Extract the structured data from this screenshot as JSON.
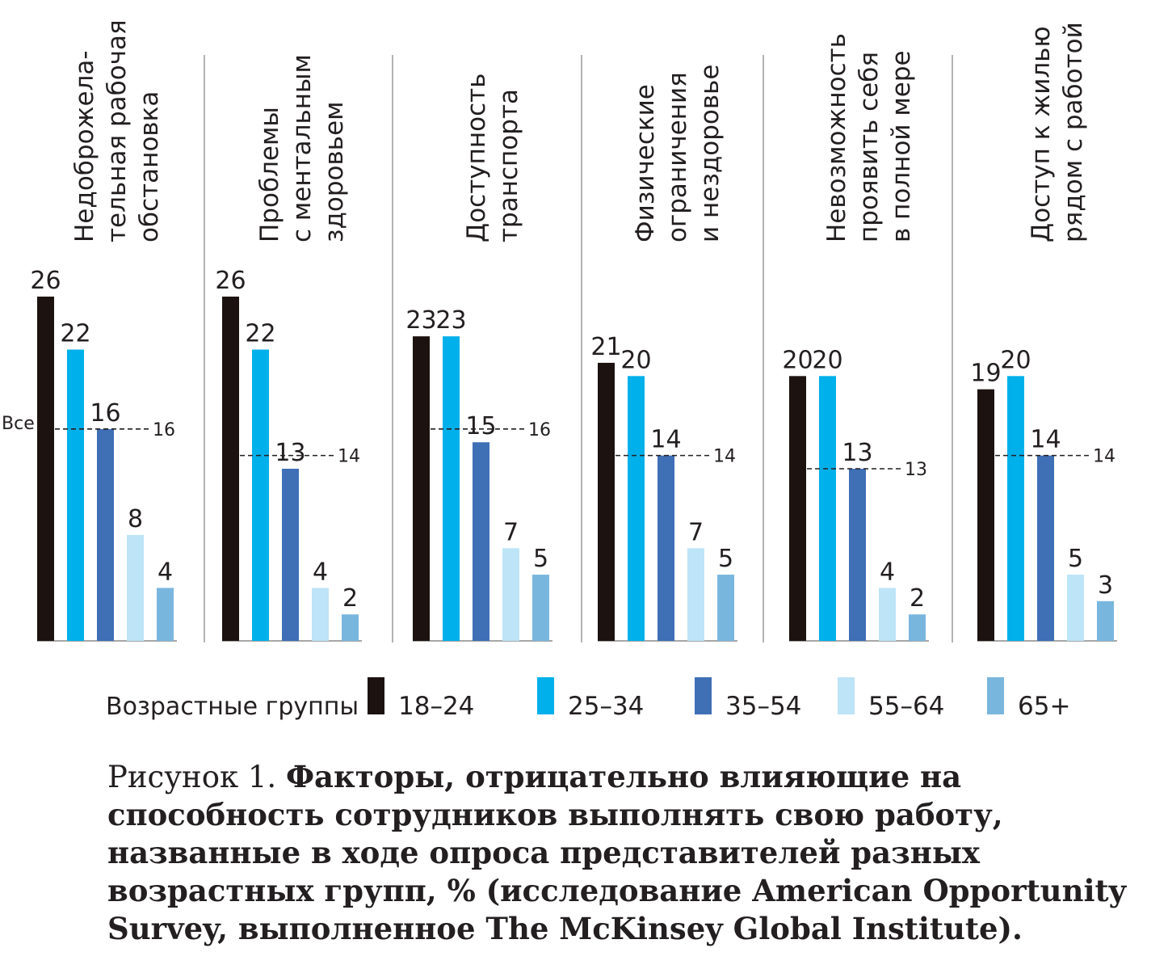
{
  "chart_data": {
    "type": "bar",
    "categories": [
      "Недоброжела-\nтельная рабочая\nобстановка",
      "Проблемы\nс ментальным\nздоровьем",
      "Доступность\nтранспорта",
      "Физические\nограничения\nи нездоровье",
      "Невозможность\nпроявить себя\nв полной мере",
      "Доступ к жилью\nрядом с работой"
    ],
    "series": [
      {
        "name": "18–24",
        "color": "#1c1310",
        "values": [
          26,
          26,
          23,
          21,
          20,
          19
        ]
      },
      {
        "name": "25–34",
        "color": "#00b0ea",
        "values": [
          22,
          22,
          23,
          20,
          20,
          20
        ]
      },
      {
        "name": "35–54",
        "color": "#3f6fb5",
        "values": [
          16,
          13,
          15,
          14,
          13,
          14
        ]
      },
      {
        "name": "55–64",
        "color": "#bde4f7",
        "values": [
          8,
          4,
          7,
          7,
          4,
          5
        ]
      },
      {
        "name": "65+",
        "color": "#79b6de",
        "values": [
          4,
          2,
          5,
          5,
          2,
          3
        ]
      }
    ],
    "reference": {
      "label": "Все",
      "values": [
        16,
        14,
        16,
        14,
        13,
        14
      ]
    },
    "legend_title": "Возрастные группы",
    "legend_position": "bottom",
    "ylim": [
      0,
      26
    ]
  },
  "caption": {
    "figure_label": "Рисунок 1. ",
    "title": "Факторы, отрицательно влияющие на способность сотрудников выполнять свою работу, названные в ходе опроса представителей разных возрастных групп, % (исследование American Opportunity Survey, выполненное The McKinsey Global Institute)."
  }
}
